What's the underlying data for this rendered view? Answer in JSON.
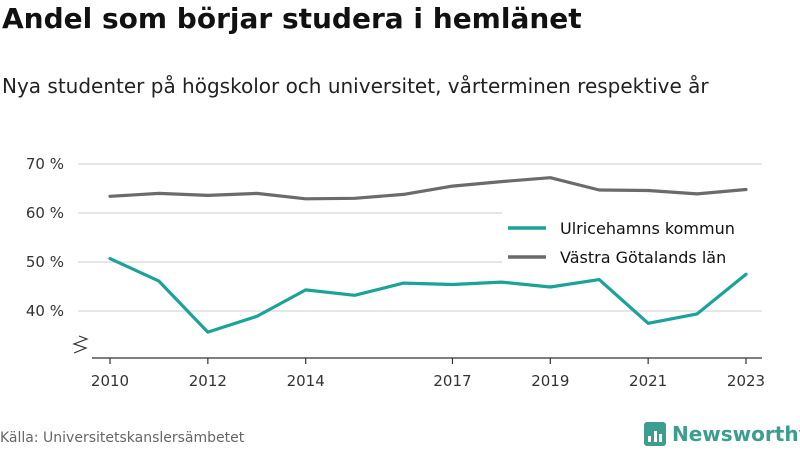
{
  "header": {
    "title": "Andel som börjar studera i hemlänet",
    "subtitle": "Nya studenter på högskolor och universitet, vårterminen respektive år"
  },
  "footer": {
    "source": "Källa: Universitetskanslersämbetet",
    "brand": "Newsworthy"
  },
  "colors": {
    "ulricehamn": "#1aa398",
    "vastra_gotaland": "#6b6b6e",
    "grid": "#dddddd",
    "brand": "#3b9e8f"
  },
  "chart_data": {
    "type": "line",
    "title": "Andel som börjar studera i hemlänet",
    "subtitle": "Nya studenter på högskolor och universitet, vårterminen respektive år",
    "x": [
      2010,
      2011,
      2012,
      2013,
      2014,
      2015,
      2016,
      2017,
      2018,
      2019,
      2020,
      2021,
      2022,
      2023
    ],
    "x_tick_labels": [
      "2010",
      "2012",
      "2014",
      "2017",
      "2019",
      "2021",
      "2023"
    ],
    "x_tick_values": [
      2010,
      2012,
      2014,
      2017,
      2019,
      2021,
      2023
    ],
    "y_tick_labels": [
      "40 %",
      "50 %",
      "60 %",
      "70 %"
    ],
    "y_tick_values": [
      40,
      50,
      60,
      70
    ],
    "ylim": [
      30,
      70
    ],
    "y_axis_break": true,
    "grid": true,
    "legend_position": "center-right",
    "series": [
      {
        "name": "Ulricehamns kommun",
        "values": [
          50.7,
          46.1,
          35.7,
          38.9,
          44.3,
          43.2,
          45.7,
          45.4,
          45.9,
          44.9,
          46.4,
          37.5,
          39.4,
          47.5
        ]
      },
      {
        "name": "Västra Götalands län",
        "values": [
          63.4,
          64.0,
          63.6,
          64.0,
          62.9,
          63.0,
          63.8,
          65.5,
          66.4,
          67.2,
          64.7,
          64.6,
          63.9,
          64.8
        ]
      }
    ]
  }
}
